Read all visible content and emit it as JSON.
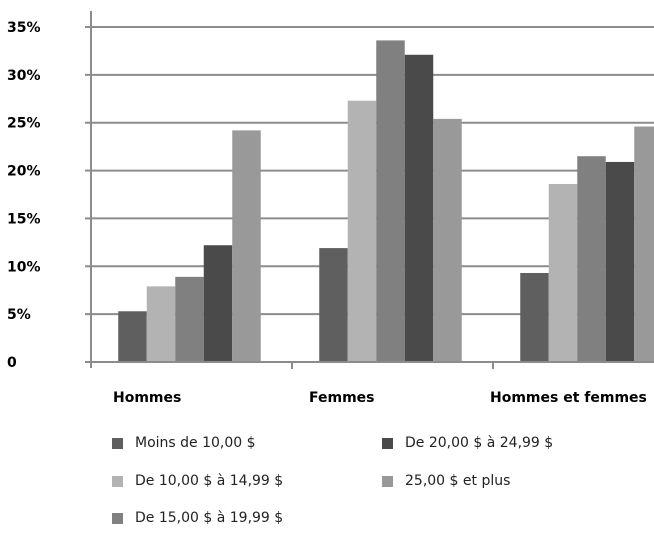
{
  "chart_data": {
    "type": "bar",
    "title": "",
    "xlabel": "",
    "ylabel": "",
    "ylim": [
      0,
      35
    ],
    "y_ticks": [
      "0",
      "5%",
      "10%",
      "15%",
      "20%",
      "25%",
      "30%",
      "35%"
    ],
    "grid": "horizontal",
    "legend_position": "bottom",
    "categories": [
      "Hommes",
      "Femmes",
      "Hommes et femmes"
    ],
    "series": [
      {
        "name": "Moins de 10,00 $",
        "color": "#5f5f5f",
        "values": [
          5.3,
          11.9,
          9.3
        ]
      },
      {
        "name": "De 10,00 $ à 14,99 $",
        "color": "#b3b3b3",
        "values": [
          7.9,
          27.3,
          18.6
        ]
      },
      {
        "name": "De 15,00 $ à 19,99 $",
        "color": "#808080",
        "values": [
          8.9,
          33.6,
          21.5
        ]
      },
      {
        "name": "De 20,00 $ à 24,99 $",
        "color": "#4a4a4a",
        "values": [
          12.2,
          32.1,
          20.9
        ]
      },
      {
        "name": "25,00 $ et plus",
        "color": "#999999",
        "values": [
          24.2,
          25.4,
          24.6
        ]
      }
    ]
  }
}
